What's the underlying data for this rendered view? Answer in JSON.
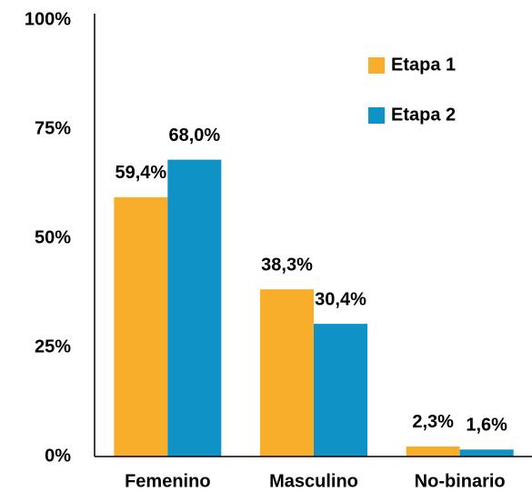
{
  "chart_data": {
    "type": "bar",
    "categories": [
      "Femenino",
      "Masculino",
      "No-binario"
    ],
    "series": [
      {
        "name": "Etapa 1",
        "color": "#F9AE2B",
        "values": [
          59.4,
          38.3,
          2.3
        ],
        "value_labels": [
          "59,4%",
          "38,3%",
          "2,3%"
        ]
      },
      {
        "name": "Etapa 2",
        "color": "#0F93C6",
        "values": [
          68.0,
          30.4,
          1.6
        ],
        "value_labels": [
          "68,0%",
          "30,4%",
          "1,6%"
        ]
      }
    ],
    "ylim": [
      0,
      100
    ],
    "yticks": [
      {
        "value": 0,
        "label": "0%"
      },
      {
        "value": 25,
        "label": "25%"
      },
      {
        "value": 50,
        "label": "50%"
      },
      {
        "value": 75,
        "label": "75%"
      },
      {
        "value": 100,
        "label": "100%"
      }
    ],
    "legend": "upper right",
    "grid": false
  }
}
